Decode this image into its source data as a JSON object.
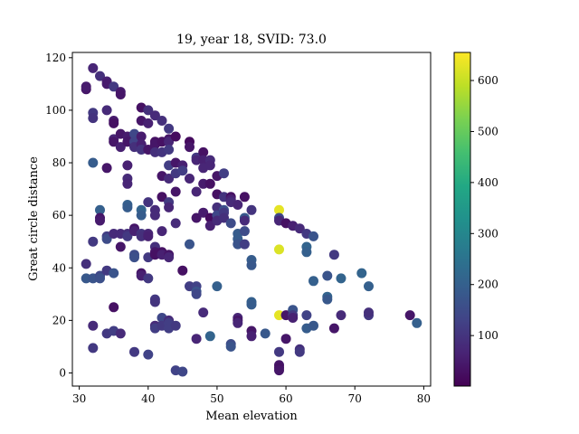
{
  "chart_data": {
    "type": "scatter",
    "title": "19, year 18, SVID: 73.0",
    "xlabel": "Mean elevation",
    "ylabel": "Great circle distance",
    "xlim": [
      29,
      81
    ],
    "ylim": [
      -5,
      122
    ],
    "xticks": [
      "30",
      "40",
      "50",
      "60",
      "70",
      "80"
    ],
    "yticks": [
      "0",
      "20",
      "40",
      "60",
      "80",
      "100",
      "120"
    ],
    "colorbar": {
      "colormap": "viridis",
      "range": [
        1,
        655
      ],
      "ticks": [
        "100",
        "200",
        "300",
        "400",
        "500",
        "600"
      ]
    },
    "grid": false,
    "points": [
      [
        31,
        108,
        40
      ],
      [
        31,
        109,
        50
      ],
      [
        31,
        41.5,
        90
      ],
      [
        31,
        36,
        180
      ],
      [
        32,
        116,
        70
      ],
      [
        32,
        99,
        110
      ],
      [
        32,
        97,
        100
      ],
      [
        32,
        80,
        190
      ],
      [
        32,
        50,
        110
      ],
      [
        32,
        36,
        170
      ],
      [
        32,
        18,
        80
      ],
      [
        32,
        9.5,
        110
      ],
      [
        33,
        113,
        90
      ],
      [
        33,
        62,
        200
      ],
      [
        33,
        59,
        40
      ],
      [
        33,
        58,
        50
      ],
      [
        33,
        37,
        140
      ],
      [
        33,
        36,
        160
      ],
      [
        34,
        111,
        60
      ],
      [
        34,
        110,
        50
      ],
      [
        34,
        100,
        80
      ],
      [
        34,
        78,
        40
      ],
      [
        34,
        52,
        120
      ],
      [
        34,
        51,
        150
      ],
      [
        34,
        39,
        110
      ],
      [
        34,
        15,
        110
      ],
      [
        35,
        109,
        110
      ],
      [
        35,
        96,
        50
      ],
      [
        35,
        95,
        30
      ],
      [
        35,
        89,
        70
      ],
      [
        35,
        88,
        40
      ],
      [
        35,
        53,
        80
      ],
      [
        35,
        38,
        170
      ],
      [
        35,
        25,
        30
      ],
      [
        35,
        16,
        120
      ],
      [
        36,
        107,
        50
      ],
      [
        36,
        106,
        40
      ],
      [
        36,
        91,
        40
      ],
      [
        36,
        86,
        60
      ],
      [
        36,
        53,
        80
      ],
      [
        36,
        48,
        40
      ],
      [
        36,
        15,
        80
      ],
      [
        37,
        90,
        50
      ],
      [
        37,
        88,
        40
      ],
      [
        37,
        79,
        60
      ],
      [
        37,
        74,
        80
      ],
      [
        37,
        72,
        70
      ],
      [
        37,
        64,
        200
      ],
      [
        37,
        63,
        190
      ],
      [
        37,
        53,
        90
      ],
      [
        37,
        52,
        110
      ],
      [
        38,
        91,
        140
      ],
      [
        38,
        88,
        130
      ],
      [
        38,
        86,
        90
      ],
      [
        38,
        55,
        40
      ],
      [
        38,
        54,
        60
      ],
      [
        38,
        45,
        150
      ],
      [
        38,
        44,
        160
      ],
      [
        38,
        8,
        110
      ],
      [
        39,
        101,
        30
      ],
      [
        39,
        96,
        40
      ],
      [
        39,
        90,
        50
      ],
      [
        39,
        87,
        60
      ],
      [
        39,
        85,
        100
      ],
      [
        39,
        62,
        210
      ],
      [
        39,
        60,
        190
      ],
      [
        39,
        53,
        100
      ],
      [
        39,
        52,
        90
      ],
      [
        39,
        38,
        40
      ],
      [
        39,
        37,
        60
      ],
      [
        40,
        100,
        90
      ],
      [
        40,
        95,
        60
      ],
      [
        40,
        85,
        40
      ],
      [
        40,
        65,
        100
      ],
      [
        40,
        53,
        70
      ],
      [
        40,
        52,
        60
      ],
      [
        40,
        44,
        110
      ],
      [
        40,
        36,
        110
      ],
      [
        40,
        7,
        130
      ],
      [
        41,
        98,
        80
      ],
      [
        41,
        88,
        30
      ],
      [
        41,
        87,
        40
      ],
      [
        41,
        84,
        90
      ],
      [
        41,
        62,
        80
      ],
      [
        41,
        60,
        80
      ],
      [
        41,
        48,
        90
      ],
      [
        41,
        46,
        40
      ],
      [
        41,
        45,
        30
      ],
      [
        41,
        28,
        110
      ],
      [
        41,
        27,
        100
      ],
      [
        41,
        18,
        80
      ],
      [
        41,
        17,
        120
      ],
      [
        42,
        96,
        90
      ],
      [
        42,
        88,
        30
      ],
      [
        42,
        84,
        100
      ],
      [
        42,
        75,
        40
      ],
      [
        42,
        67,
        30
      ],
      [
        42,
        54,
        70
      ],
      [
        42,
        46,
        30
      ],
      [
        42,
        45,
        60
      ],
      [
        42,
        21,
        140
      ],
      [
        42,
        18,
        110
      ],
      [
        43,
        93,
        110
      ],
      [
        43,
        89,
        40
      ],
      [
        43,
        88,
        70
      ],
      [
        43,
        85,
        110
      ],
      [
        43,
        79,
        120
      ],
      [
        43,
        74,
        80
      ],
      [
        43,
        65,
        110
      ],
      [
        43,
        63,
        70
      ],
      [
        43,
        45,
        40
      ],
      [
        43,
        44,
        70
      ],
      [
        43,
        20,
        80
      ],
      [
        43,
        19,
        120
      ],
      [
        43,
        17,
        120
      ],
      [
        44,
        90,
        20
      ],
      [
        44,
        80,
        40
      ],
      [
        44,
        76,
        110
      ],
      [
        44,
        69,
        40
      ],
      [
        44,
        57,
        80
      ],
      [
        44,
        18,
        110
      ],
      [
        44,
        1,
        130
      ],
      [
        45,
        79,
        60
      ],
      [
        45,
        77,
        120
      ],
      [
        45,
        39,
        30
      ],
      [
        45,
        0.5,
        140
      ],
      [
        46,
        88,
        20
      ],
      [
        46,
        86,
        40
      ],
      [
        46,
        74,
        70
      ],
      [
        46,
        49,
        170
      ],
      [
        46,
        33,
        120
      ],
      [
        47,
        82,
        110
      ],
      [
        47,
        81,
        70
      ],
      [
        47,
        69,
        70
      ],
      [
        47,
        59,
        40
      ],
      [
        47,
        33,
        130
      ],
      [
        47,
        31,
        170
      ],
      [
        47,
        30,
        140
      ],
      [
        47,
        13,
        70
      ],
      [
        48,
        84,
        30
      ],
      [
        48,
        81,
        60
      ],
      [
        48,
        78,
        70
      ],
      [
        48,
        72,
        50
      ],
      [
        48,
        61,
        50
      ],
      [
        48,
        23,
        80
      ],
      [
        49,
        81,
        80
      ],
      [
        49,
        79,
        70
      ],
      [
        49,
        72,
        30
      ],
      [
        49,
        59,
        20
      ],
      [
        49,
        56,
        60
      ],
      [
        49,
        14,
        210
      ],
      [
        50,
        75,
        40
      ],
      [
        50,
        68,
        30
      ],
      [
        50,
        63,
        90
      ],
      [
        50,
        60,
        140
      ],
      [
        50,
        58,
        80
      ],
      [
        50,
        33,
        200
      ],
      [
        51,
        76,
        120
      ],
      [
        51,
        67,
        100
      ],
      [
        51,
        62,
        160
      ],
      [
        51,
        61,
        110
      ],
      [
        51,
        59,
        90
      ],
      [
        52,
        67,
        30
      ],
      [
        52,
        66,
        60
      ],
      [
        52,
        65,
        80
      ],
      [
        52,
        57,
        150
      ],
      [
        52,
        11,
        150
      ],
      [
        52,
        10,
        170
      ],
      [
        53,
        64,
        70
      ],
      [
        53,
        53,
        190
      ],
      [
        53,
        51,
        190
      ],
      [
        53,
        49,
        170
      ],
      [
        53,
        21,
        70
      ],
      [
        53,
        20,
        40
      ],
      [
        53,
        19,
        70
      ],
      [
        54,
        67,
        30
      ],
      [
        54,
        59,
        180
      ],
      [
        54,
        58,
        80
      ],
      [
        54,
        54,
        150
      ],
      [
        54,
        49,
        120
      ],
      [
        55,
        62,
        100
      ],
      [
        55,
        43,
        190
      ],
      [
        55,
        41,
        180
      ],
      [
        55,
        27,
        200
      ],
      [
        55,
        26,
        190
      ],
      [
        55,
        16,
        40
      ],
      [
        55,
        14,
        60
      ],
      [
        57,
        15,
        180
      ],
      [
        59,
        62,
        630
      ],
      [
        59,
        59,
        140
      ],
      [
        59,
        58,
        70
      ],
      [
        59,
        47,
        620
      ],
      [
        59,
        22,
        630
      ],
      [
        59,
        8,
        110
      ],
      [
        59,
        3,
        40
      ],
      [
        59,
        2,
        30
      ],
      [
        59,
        1,
        40
      ],
      [
        60,
        57,
        30
      ],
      [
        60,
        22,
        40
      ],
      [
        60,
        13,
        40
      ],
      [
        61,
        56,
        60
      ],
      [
        61,
        24,
        170
      ],
      [
        61,
        22,
        110
      ],
      [
        61,
        21,
        60
      ],
      [
        62,
        55,
        80
      ],
      [
        62,
        9,
        90
      ],
      [
        62,
        8,
        110
      ],
      [
        63,
        53,
        110
      ],
      [
        63,
        48,
        210
      ],
      [
        63,
        46,
        200
      ],
      [
        63,
        22,
        130
      ],
      [
        63,
        17,
        190
      ],
      [
        64,
        52,
        170
      ],
      [
        64,
        35,
        200
      ],
      [
        64,
        18,
        180
      ],
      [
        66,
        37,
        170
      ],
      [
        66,
        29,
        210
      ],
      [
        66,
        28,
        180
      ],
      [
        67,
        45,
        110
      ],
      [
        67,
        17,
        40
      ],
      [
        68,
        36,
        210
      ],
      [
        68,
        22,
        80
      ],
      [
        71,
        38,
        210
      ],
      [
        72,
        33,
        200
      ],
      [
        72,
        22,
        110
      ],
      [
        72,
        23,
        90
      ],
      [
        78,
        22,
        40
      ],
      [
        79,
        19,
        200
      ]
    ]
  }
}
